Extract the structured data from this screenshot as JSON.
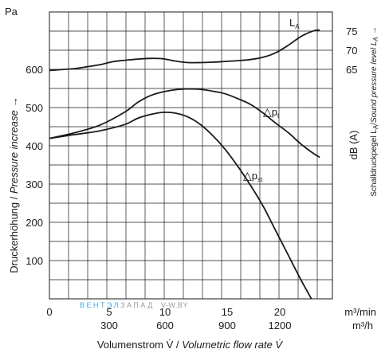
{
  "chart_data": {
    "type": "line",
    "y_unit_left": "Pa",
    "y_label_left": {
      "plain": "Druckerhöhung / ",
      "italic": "Pressure increase",
      "arrow": "→"
    },
    "y_label_right": {
      "plain_start": "Schalldruckpegel L",
      "sub": "A",
      "plain_mid": "/",
      "italic": "Sound pressure level L",
      "italic_sub": "A",
      "arrow": "→"
    },
    "y_unit_right": "dB (A)",
    "x_label": {
      "plain": "Volumenstrom V̇ / ",
      "italic": "Volumetric flow rate V̇"
    },
    "x_unit_1": "m³/min",
    "x_unit_2": "m³/h",
    "x_ticks_min": [
      "0",
      "5",
      "10",
      "15",
      "20"
    ],
    "x_ticks_h": [
      "300",
      "600",
      "900",
      "1200"
    ],
    "y_ticks": [
      "100",
      "200",
      "300",
      "400",
      "500",
      "600"
    ],
    "y_ticks_right": [
      "65",
      "70",
      "75"
    ],
    "xlim_m3min": [
      0,
      22.5
    ],
    "ylim_pa": [
      0,
      760
    ],
    "grid": true,
    "series": [
      {
        "name": "p",
        "sub": "t",
        "color": "#1a1a1a",
        "x": [
          0,
          2,
          4,
          6,
          7,
          8,
          9,
          10,
          11,
          12,
          13,
          14,
          15,
          16,
          17,
          18,
          19,
          20,
          21,
          21.5
        ],
        "y": [
          425,
          440,
          460,
          495,
          520,
          538,
          548,
          554,
          556,
          555,
          550,
          543,
          530,
          515,
          492,
          465,
          440,
          410,
          385,
          375
        ]
      },
      {
        "name": "p",
        "sub": "st",
        "color": "#1a1a1a",
        "x": [
          0,
          2,
          4,
          6,
          7,
          8,
          9,
          10,
          11,
          12,
          13,
          14,
          15,
          16,
          17,
          18,
          19,
          20,
          21,
          21.5
        ],
        "y": [
          425,
          435,
          445,
          462,
          478,
          488,
          494,
          492,
          482,
          462,
          432,
          395,
          350,
          300,
          245,
          180,
          115,
          50,
          -10,
          -40
        ]
      },
      {
        "name": "L",
        "sub": "A",
        "color": "#1a1a1a",
        "x": [
          0,
          2,
          3,
          4,
          5,
          6,
          7,
          8,
          9,
          10,
          11,
          12,
          13,
          14,
          15,
          16,
          17,
          18,
          19,
          20,
          21,
          21.5
        ],
        "y": [
          605,
          610,
          615,
          620,
          628,
          632,
          635,
          637,
          636,
          630,
          626,
          626,
          627,
          629,
          631,
          634,
          640,
          652,
          672,
          695,
          710,
          712
        ]
      }
    ]
  },
  "watermark": {
    "word1": "ВЕНТЭЛ",
    "word2": "ЗАПАД",
    "site": "V-W.BY",
    "color1": "#4aa8dc",
    "color2": "#9a9a9a"
  }
}
